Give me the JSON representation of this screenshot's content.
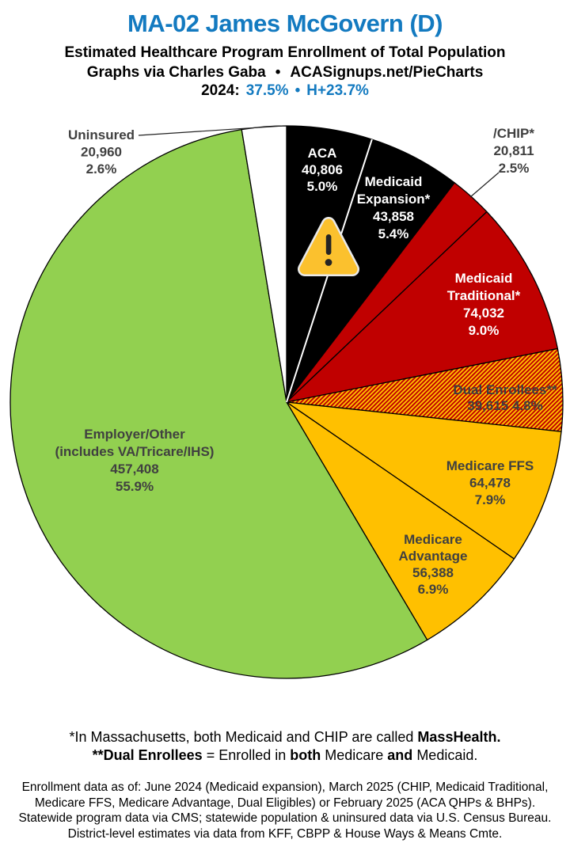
{
  "header": {
    "title": "MA-02 James McGovern (D)",
    "subtitle": "Estimated Healthcare Program Enrollment of Total Population",
    "credit_prefix": "Graphs via Charles Gaba",
    "credit_bullet": "•",
    "credit_site": "ACASignups.net/PieCharts",
    "stats_year": "2024:",
    "stats_value": "37.5%",
    "stats_bullet": "•",
    "stats_h": "H+23.7%"
  },
  "colors": {
    "accent_blue": "#137AC0",
    "label_gray": "#404040",
    "pie_border": "#000000",
    "leader_line": "#222222",
    "divider_white": "#FFFFFF",
    "warning_fill": "#FBC12E",
    "warning_halo": "#E9E9E9",
    "warning_glyph": "#242424"
  },
  "icons": {
    "warning_triangle": "⚠"
  },
  "chart_data": {
    "type": "pie",
    "title": "MA-02 James McGovern (D) — Estimated Healthcare Program Enrollment of Total Population",
    "start": "top",
    "direction": "clockwise",
    "legend_position": "none",
    "slices": [
      {
        "id": "aca",
        "name": "ACA",
        "value": 40806,
        "value_text": "40,806",
        "pct": 5.0,
        "pct_text": "5.0%",
        "color": "#000000",
        "label_color": "#FFFFFF",
        "label_pos": "inside",
        "label_lines": [
          "ACA",
          "40,806",
          "5.0%"
        ]
      },
      {
        "id": "medicaid-expansion",
        "name": "Medicaid Expansion*",
        "value": 43858,
        "value_text": "43,858",
        "pct": 5.4,
        "pct_text": "5.4%",
        "color": "#000000",
        "label_color": "#FFFFFF",
        "label_pos": "inside",
        "label_lines": [
          "Medicaid",
          "Expansion*",
          "43,858",
          "5.4%"
        ]
      },
      {
        "id": "chip",
        "name": "/CHIP*",
        "value": 20811,
        "value_text": "20,811",
        "pct": 2.5,
        "pct_text": "2.5%",
        "color": "#C00000",
        "label_color": "#404040",
        "label_pos": "outside",
        "leader": true,
        "label_lines": [
          "/CHIP*",
          "20,811",
          "2.5%"
        ]
      },
      {
        "id": "medicaid-traditional",
        "name": "Medicaid Traditional*",
        "value": 74032,
        "value_text": "74,032",
        "pct": 9.0,
        "pct_text": "9.0%",
        "color": "#C00000",
        "label_color": "#FFFFFF",
        "label_pos": "inside",
        "label_lines": [
          "Medicaid",
          "Traditional*",
          "74,032",
          "9.0%"
        ]
      },
      {
        "id": "dual-enrollees",
        "name": "Dual Enrollees**",
        "value": 39615,
        "value_text": "39,615",
        "pct": 4.8,
        "pct_text": "4.8%",
        "color": "hatch",
        "hatch": {
          "bg": "#FFC000",
          "stripe": "#C00000"
        },
        "label_color": "#3F3F3F",
        "label_pos": "inside",
        "label_lines": [
          "Dual Enrollees**",
          "39,615 4.8%"
        ]
      },
      {
        "id": "medicare-ffs",
        "name": "Medicare FFS",
        "value": 64478,
        "value_text": "64,478",
        "pct": 7.9,
        "pct_text": "7.9%",
        "color": "#FFC000",
        "label_color": "#404040",
        "label_pos": "inside",
        "label_lines": [
          "Medicare FFS",
          "64,478",
          "7.9%"
        ]
      },
      {
        "id": "medicare-advantage",
        "name": "Medicare Advantage",
        "value": 56388,
        "value_text": "56,388",
        "pct": 6.9,
        "pct_text": "6.9%",
        "color": "#FFC000",
        "label_color": "#404040",
        "label_pos": "inside",
        "label_lines": [
          "Medicare",
          "Advantage",
          "56,388",
          "6.9%"
        ]
      },
      {
        "id": "employer-other",
        "name": "Employer/Other (includes VA/Tricare/IHS)",
        "value": 457408,
        "value_text": "457,408",
        "pct": 55.9,
        "pct_text": "55.9%",
        "color": "#92D050",
        "label_color": "#404040",
        "label_pos": "inside",
        "label_lines": [
          "Employer/Other",
          "(includes VA/Tricare/IHS)",
          "457,408",
          "55.9%"
        ]
      },
      {
        "id": "uninsured",
        "name": "Uninsured",
        "value": 20960,
        "value_text": "20,960",
        "pct": 2.6,
        "pct_text": "2.6%",
        "color": "#FFFFFF",
        "label_color": "#404040",
        "label_pos": "outside",
        "leader": true,
        "label_lines": [
          "Uninsured",
          "20,960",
          "2.6%"
        ]
      }
    ]
  },
  "footnotes": {
    "line1_segments": [
      {
        "text": "*In Massachusetts, both Medicaid and CHIP are called ",
        "bold": false
      },
      {
        "text": "MassHealth.",
        "bold": true
      }
    ],
    "line2_segments": [
      {
        "text": "**Dual Enrollees",
        "bold": true
      },
      {
        "text": " = Enrolled in ",
        "bold": false
      },
      {
        "text": "both",
        "bold": true
      },
      {
        "text": " Medicare ",
        "bold": false
      },
      {
        "text": "and",
        "bold": true
      },
      {
        "text": " Medicaid.",
        "bold": false
      }
    ],
    "data_note_lines": [
      "Enrollment data as of: June 2024 (Medicaid expansion), March 2025 (CHIP, Medicaid Traditional,",
      "Medicare FFS, Medicare Advantage, Dual Eligibles) or February 2025 (ACA QHPs & BHPs).",
      "Statewide program data via CMS; statewide population & uninsured data via U.S. Census Bureau.",
      "District-level estimates via data from KFF, CBPP & House Ways & Means Cmte."
    ]
  }
}
